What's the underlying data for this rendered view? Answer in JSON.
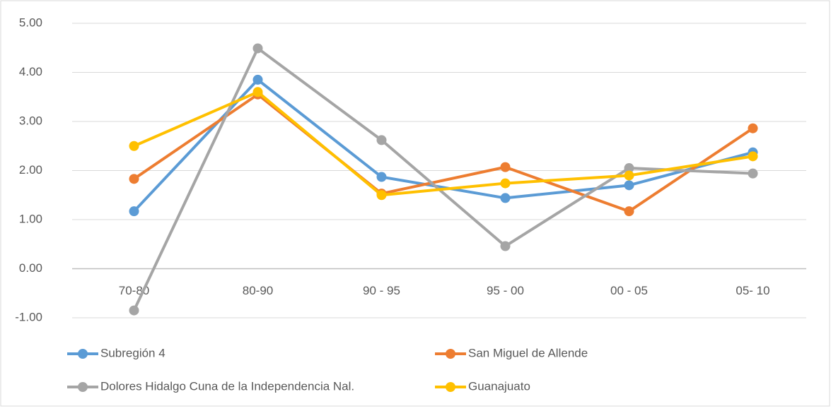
{
  "chart_data": {
    "type": "line",
    "categories": [
      "70-80",
      "80-90",
      "90 - 95",
      "95 - 00",
      "00 - 05",
      "05- 10"
    ],
    "series": [
      {
        "name": "Subregión 4",
        "color": "#5b9bd5",
        "values": [
          1.17,
          3.85,
          1.87,
          1.44,
          1.7,
          2.37
        ]
      },
      {
        "name": "San Miguel de Allende",
        "color": "#ed7d31",
        "values": [
          1.83,
          3.55,
          1.53,
          2.07,
          1.17,
          2.86
        ]
      },
      {
        "name": "Dolores Hidalgo Cuna de la Independencia Nal.",
        "color": "#a5a5a5",
        "values": [
          -0.85,
          4.49,
          2.62,
          0.46,
          2.05,
          1.94
        ]
      },
      {
        "name": "Guanajuato",
        "color": "#ffc000",
        "values": [
          2.5,
          3.6,
          1.5,
          1.74,
          1.9,
          2.29
        ]
      }
    ],
    "ylim": [
      -1,
      5
    ],
    "yticks": [
      {
        "value": -1,
        "label": "-1.00"
      },
      {
        "value": 0,
        "label": "0.00"
      },
      {
        "value": 1,
        "label": "1.00"
      },
      {
        "value": 2,
        "label": "2.00"
      },
      {
        "value": 3,
        "label": "3.00"
      },
      {
        "value": 4,
        "label": "4.00"
      },
      {
        "value": 5,
        "label": "5.00"
      }
    ],
    "grid": true,
    "legend": "bottom"
  }
}
